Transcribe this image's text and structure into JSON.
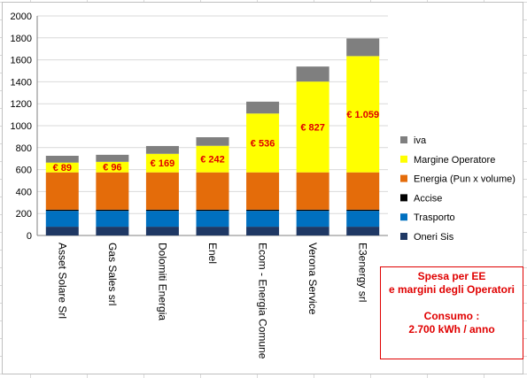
{
  "chart_data": {
    "type": "bar",
    "stacked": true,
    "categories": [
      "Asset Solare Srl",
      "Gas Sales srl",
      "Dolomiti Energia",
      "Enel",
      "Ecom - Energia Comune",
      "Verona Service",
      "E3energy srl"
    ],
    "series": [
      {
        "name": "Oneri Sis",
        "color": "#1f3864",
        "values": [
          80,
          80,
          80,
          80,
          80,
          80,
          80
        ]
      },
      {
        "name": "Trasporto",
        "color": "#0070c0",
        "values": [
          145,
          145,
          145,
          145,
          145,
          145,
          145
        ]
      },
      {
        "name": "Accise",
        "color": "#000000",
        "values": [
          10,
          10,
          10,
          10,
          10,
          10,
          10
        ]
      },
      {
        "name": "Energia (Pun x volume)",
        "color": "#e46c0a",
        "values": [
          340,
          340,
          340,
          340,
          340,
          340,
          340
        ]
      },
      {
        "name": "Margine Operatore",
        "color": "#ffff00",
        "values": [
          89,
          96,
          169,
          242,
          536,
          827,
          1059
        ]
      },
      {
        "name": "iva",
        "color": "#7f7f7f",
        "values": [
          62,
          64,
          71,
          78,
          108,
          137,
          161
        ]
      }
    ],
    "data_labels": [
      "€ 89",
      "€ 96",
      "€ 169",
      "€ 242",
      "€ 536",
      "€ 827",
      "€ 1.059"
    ],
    "data_label_color": "#e00000",
    "ylim": [
      0,
      2000
    ],
    "yticks": [
      "0",
      "200",
      "400",
      "600",
      "800",
      "1000",
      "1200",
      "1400",
      "1600",
      "1800",
      "2000"
    ],
    "grid": true,
    "legend_position": "right",
    "legend_order": [
      "iva",
      "Margine Operatore",
      "Energia (Pun x volume)",
      "Accise",
      "Trasporto",
      "Oneri Sis"
    ]
  },
  "note": {
    "line1": "Spesa  per EE",
    "line2": "e margini degli Operatori",
    "line3": "Consumo :",
    "line4": "2.700 kWh / anno"
  }
}
